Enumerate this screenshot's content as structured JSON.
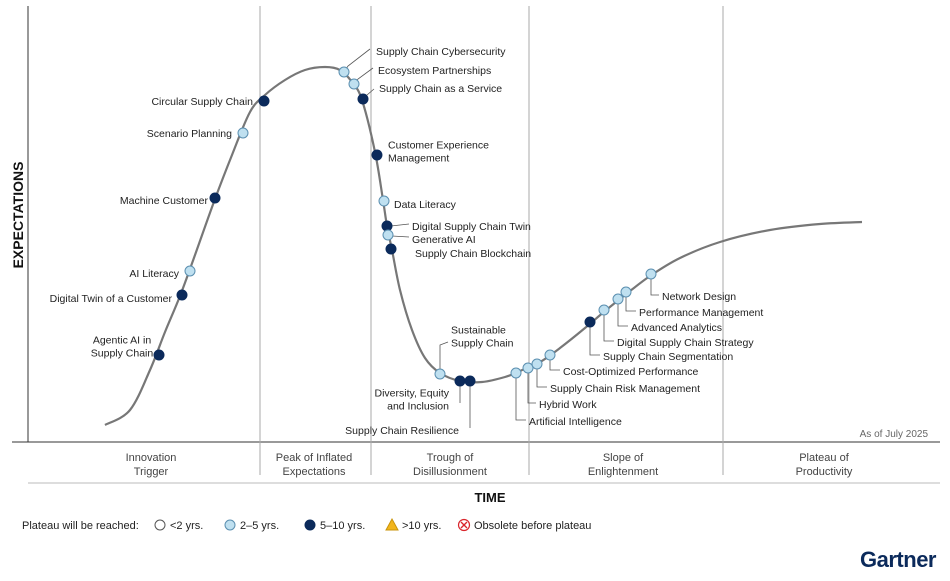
{
  "axes": {
    "y_label": "EXPECTATIONS",
    "x_label": "TIME",
    "as_of": "As of July 2025"
  },
  "phases": [
    {
      "line1": "Innovation",
      "line2": "Trigger"
    },
    {
      "line1": "Peak of Inflated",
      "line2": "Expectations"
    },
    {
      "line1": "Trough of",
      "line2": "Disillusionment"
    },
    {
      "line1": "Slope of",
      "line2": "Enlightenment"
    },
    {
      "line1": "Plateau of",
      "line2": "Productivity"
    }
  ],
  "legend": {
    "title": "Plateau will be reached:",
    "items": [
      {
        "key": "lt2",
        "label": "<2 yrs.",
        "color": "#ffffff"
      },
      {
        "key": "2to5",
        "label": "2–5 yrs.",
        "color": "#bfe0f0"
      },
      {
        "key": "5to10",
        "label": "5–10 yrs.",
        "color": "#0b2a5b"
      },
      {
        "key": "gt10",
        "label": ">10 yrs.",
        "color": "#f2b51c"
      },
      {
        "key": "obsolete",
        "label": "Obsolete before plateau",
        "color": "#d9262c"
      }
    ]
  },
  "technologies": [
    {
      "name": "Agentic AI in|Supply Chain",
      "cat": "5to10"
    },
    {
      "name": "Digital Twin of a Customer",
      "cat": "5to10"
    },
    {
      "name": "AI Literacy",
      "cat": "2to5"
    },
    {
      "name": "Machine Customer",
      "cat": "5to10"
    },
    {
      "name": "Scenario Planning",
      "cat": "2to5"
    },
    {
      "name": "Circular Supply Chain",
      "cat": "5to10"
    },
    {
      "name": "Supply Chain Cybersecurity",
      "cat": "2to5"
    },
    {
      "name": "Ecosystem Partnerships",
      "cat": "2to5"
    },
    {
      "name": "Supply Chain as a Service",
      "cat": "5to10"
    },
    {
      "name": "Customer Experience|Management",
      "cat": "5to10"
    },
    {
      "name": "Data Literacy",
      "cat": "2to5"
    },
    {
      "name": "Digital Supply Chain Twin",
      "cat": "5to10"
    },
    {
      "name": "Generative AI",
      "cat": "2to5"
    },
    {
      "name": "Supply Chain Blockchain",
      "cat": "5to10"
    },
    {
      "name": "Sustainable|Supply Chain",
      "cat": "2to5"
    },
    {
      "name": "Diversity, Equity|and Inclusion",
      "cat": "5to10"
    },
    {
      "name": "Supply Chain Resilience",
      "cat": "5to10"
    },
    {
      "name": "Artificial Intelligence",
      "cat": "2to5"
    },
    {
      "name": "Hybrid Work",
      "cat": "2to5"
    },
    {
      "name": "Supply Chain Risk Management",
      "cat": "2to5"
    },
    {
      "name": "Cost-Optimized Performance",
      "cat": "2to5"
    },
    {
      "name": "Supply Chain Segmentation",
      "cat": "5to10"
    },
    {
      "name": "Digital Supply Chain Strategy",
      "cat": "2to5"
    },
    {
      "name": "Advanced Analytics",
      "cat": "2to5"
    },
    {
      "name": "Performance Management",
      "cat": "2to5"
    },
    {
      "name": "Network Design",
      "cat": "2to5"
    }
  ],
  "brand": "Gartner"
}
